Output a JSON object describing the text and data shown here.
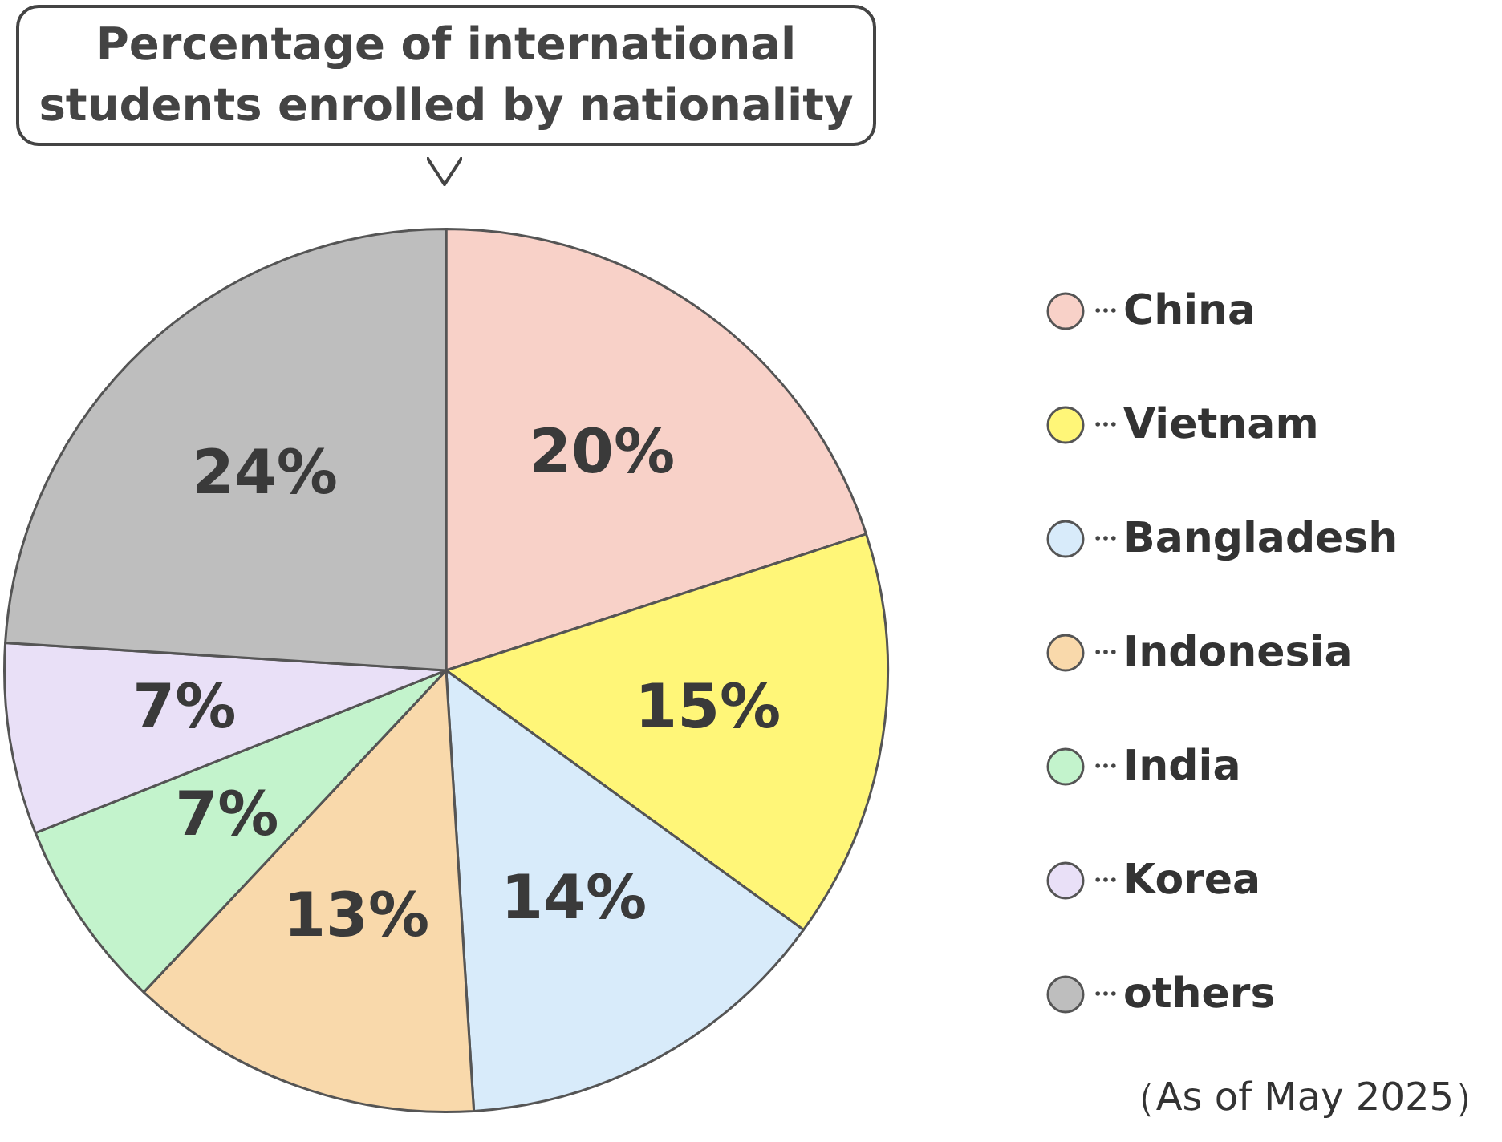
{
  "chart_data": {
    "type": "pie",
    "title": "Percentage of international students enrolled by nationality",
    "categories": [
      "China",
      "Vietnam",
      "Bangladesh",
      "Indonesia",
      "India",
      "Korea",
      "others"
    ],
    "values": [
      20,
      15,
      14,
      13,
      7,
      7,
      24
    ],
    "colors": [
      "#f8d1c8",
      "#fff678",
      "#d8ebfa",
      "#f9d9ab",
      "#c3f3cc",
      "#e9e0f7",
      "#bebebe"
    ],
    "value_labels": [
      "20%",
      "15%",
      "14%",
      "13%",
      "7%",
      "7%",
      "24%"
    ],
    "legend": "right",
    "annotations": [
      "（As of May 2025）"
    ]
  }
}
